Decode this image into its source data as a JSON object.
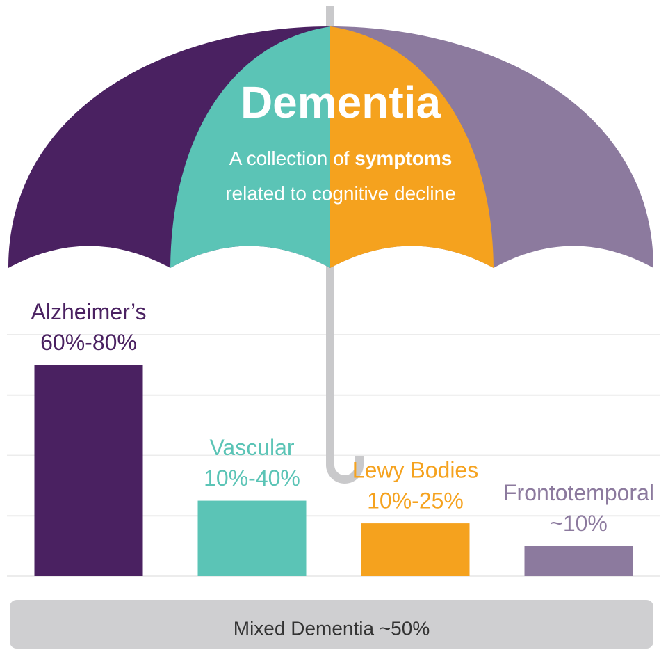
{
  "chart_data": {
    "type": "bar",
    "title": "Dementia",
    "subtitle": {
      "before": "A collection of",
      "bold": "symptoms",
      "after": "related to cognitive decline"
    },
    "categories": [
      "Alzheimer’s",
      "Vascular",
      "Lewy Bodies",
      "Frontotemporal"
    ],
    "values": [
      70,
      25,
      17.5,
      10
    ],
    "value_labels": [
      "60%-80%",
      "10%-40%",
      "10%-25%",
      "~10%"
    ],
    "colors": [
      "#4a2161",
      "#5bc4b6",
      "#f5a21e",
      "#8c7a9e"
    ],
    "ylim": [
      0,
      80
    ],
    "yticks": [
      0,
      20,
      40,
      60,
      80
    ],
    "grid": true,
    "annotation": "Mixed Dementia ~50%"
  }
}
